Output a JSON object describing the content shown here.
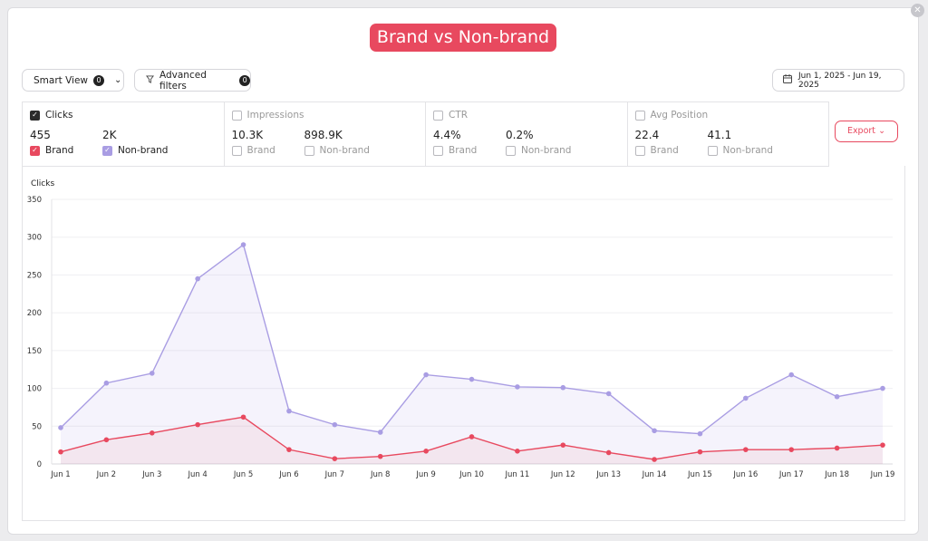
{
  "title": "Brand vs Non-brand",
  "toolbar": {
    "smart_view_label": "Smart View",
    "smart_view_count": "0",
    "advanced_filters_label": "Advanced filters",
    "advanced_filters_count": "0",
    "date_range": "Jun 1, 2025 - Jun 19, 2025",
    "export_label": "Export"
  },
  "metrics": [
    {
      "name": "Clicks",
      "active": true,
      "brand_value": "455",
      "nonbrand_value": "2K",
      "brand_label": "Brand",
      "nonbrand_label": "Non-brand"
    },
    {
      "name": "Impressions",
      "active": false,
      "brand_value": "10.3K",
      "nonbrand_value": "898.9K",
      "brand_label": "Brand",
      "nonbrand_label": "Non-brand"
    },
    {
      "name": "CTR",
      "active": false,
      "brand_value": "4.4%",
      "nonbrand_value": "0.2%",
      "brand_label": "Brand",
      "nonbrand_label": "Non-brand"
    },
    {
      "name": "Avg Position",
      "active": false,
      "brand_value": "22.4",
      "nonbrand_value": "41.1",
      "brand_label": "Brand",
      "nonbrand_label": "Non-brand"
    }
  ],
  "colors": {
    "brand": "#e8495f",
    "nonbrand": "#a99de3",
    "accent": "#e8495f"
  },
  "chart_data": {
    "type": "area",
    "ylabel": "Clicks",
    "ylim": [
      0,
      350
    ],
    "yticks": [
      0,
      50,
      100,
      150,
      200,
      250,
      300,
      350
    ],
    "grid": true,
    "categories": [
      "Jun 1",
      "Jun 2",
      "Jun 3",
      "Jun 4",
      "Jun 5",
      "Jun 6",
      "Jun 7",
      "Jun 8",
      "Jun 9",
      "Jun 10",
      "Jun 11",
      "Jun 12",
      "Jun 13",
      "Jun 14",
      "Jun 15",
      "Jun 16",
      "Jun 17",
      "Jun 18",
      "Jun 19"
    ],
    "series": [
      {
        "name": "Non-brand",
        "color": "#a99de3",
        "values": [
          48,
          107,
          120,
          245,
          290,
          70,
          52,
          42,
          118,
          112,
          102,
          101,
          93,
          44,
          40,
          87,
          118,
          89,
          100
        ]
      },
      {
        "name": "Brand",
        "color": "#e8495f",
        "values": [
          16,
          32,
          41,
          52,
          62,
          19,
          7,
          10,
          17,
          36,
          17,
          25,
          15,
          6,
          16,
          19,
          19,
          21,
          25
        ]
      }
    ]
  }
}
